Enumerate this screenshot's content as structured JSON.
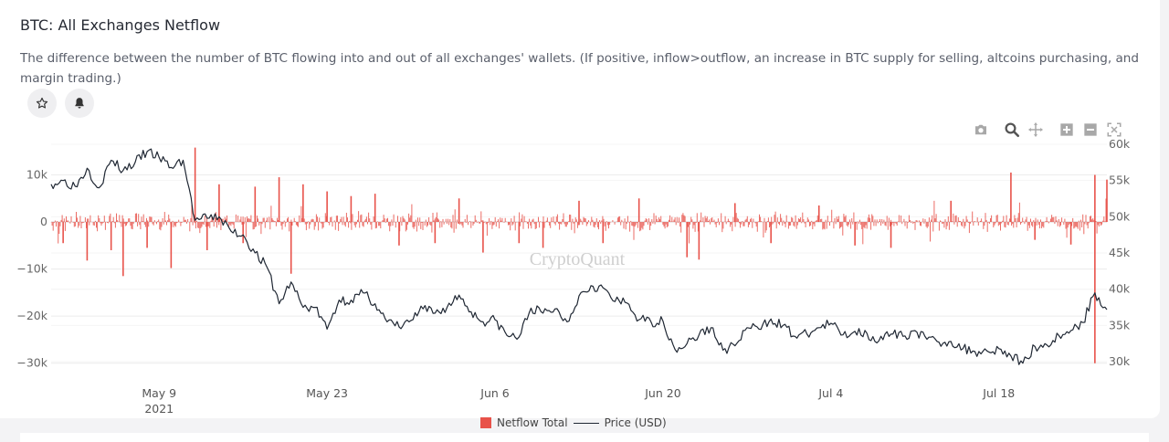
{
  "header": {
    "title": "BTC: All Exchanges Netflow",
    "description": "The difference between the number of BTC flowing into and out of all exchanges' wallets. (If positive, inflow>outflow, an increase in BTC supply for selling, altcoins purchasing, and margin trading.)"
  },
  "actions": {
    "star_icon": "star-icon",
    "bell_icon": "bell-icon"
  },
  "toolbar": {
    "icons": [
      "camera-icon",
      "zoom-icon",
      "pan-icon",
      "zoom-in-icon",
      "zoom-out-icon",
      "autoscale-icon"
    ]
  },
  "watermark": "CryptoQuant",
  "legend": {
    "netflow": "Netflow Total",
    "price": "Price (USD)"
  },
  "colors": {
    "netflow": "#e8524a",
    "price": "#1f2733",
    "grid": "#ececec"
  },
  "chart_data": {
    "type": "bar+line",
    "x_start": "2021-04-30",
    "x_end": "2021-07-27",
    "x_ticks": [
      {
        "date": "2021-05-09",
        "label": "May 9",
        "sublabel": "2021"
      },
      {
        "date": "2021-05-23",
        "label": "May 23"
      },
      {
        "date": "2021-06-06",
        "label": "Jun 6"
      },
      {
        "date": "2021-06-20",
        "label": "Jun 20"
      },
      {
        "date": "2021-07-04",
        "label": "Jul 4"
      },
      {
        "date": "2021-07-18",
        "label": "Jul 18"
      }
    ],
    "y_left": {
      "range": [
        -32000,
        16500
      ],
      "ticks": [
        10000,
        0,
        -10000,
        -20000,
        -30000
      ],
      "tick_labels": [
        "10k",
        "0",
        "−10k",
        "−20k",
        "−30k"
      ]
    },
    "y_right": {
      "range": [
        28500,
        60000
      ],
      "ticks": [
        60000,
        55000,
        50000,
        45000,
        40000,
        35000,
        30000
      ],
      "tick_labels": [
        "60k",
        "55k",
        "50k",
        "45k",
        "40k",
        "35k",
        "30k"
      ]
    },
    "series": [
      {
        "name": "Netflow Total",
        "axis": "left",
        "type": "bar",
        "spikes": [
          [
            "2021-05-01",
            -4500
          ],
          [
            "2021-05-03",
            -8200
          ],
          [
            "2021-05-05",
            -6000
          ],
          [
            "2021-05-06",
            -11500
          ],
          [
            "2021-05-08",
            -5500
          ],
          [
            "2021-05-10",
            -9800
          ],
          [
            "2021-05-12",
            15800
          ],
          [
            "2021-05-13",
            -6000
          ],
          [
            "2021-05-14",
            8000
          ],
          [
            "2021-05-16",
            -4500
          ],
          [
            "2021-05-17",
            7500
          ],
          [
            "2021-05-19",
            9500
          ],
          [
            "2021-05-20",
            -11000
          ],
          [
            "2021-05-21",
            8000
          ],
          [
            "2021-05-23",
            6500
          ],
          [
            "2021-05-25",
            5500
          ],
          [
            "2021-05-27",
            6000
          ],
          [
            "2021-05-29",
            -5000
          ],
          [
            "2021-06-01",
            -4500
          ],
          [
            "2021-06-03",
            5000
          ],
          [
            "2021-06-05",
            -6500
          ],
          [
            "2021-06-08",
            -4500
          ],
          [
            "2021-06-10",
            -5500
          ],
          [
            "2021-06-13",
            4500
          ],
          [
            "2021-06-15",
            -4500
          ],
          [
            "2021-06-18",
            5000
          ],
          [
            "2021-06-22",
            -7500
          ],
          [
            "2021-06-23",
            -8000
          ],
          [
            "2021-06-26",
            4000
          ],
          [
            "2021-06-29",
            -4500
          ],
          [
            "2021-07-03",
            3500
          ],
          [
            "2021-07-06",
            -5000
          ],
          [
            "2021-07-09",
            -5500
          ],
          [
            "2021-07-14",
            4500
          ],
          [
            "2021-07-19",
            10500
          ],
          [
            "2021-07-21",
            -3800
          ],
          [
            "2021-07-24",
            -4800
          ],
          [
            "2021-07-26",
            10000
          ],
          [
            "2021-07-26",
            -30000
          ],
          [
            "2021-07-27",
            9000
          ]
        ],
        "typical_amplitude": 2000
      },
      {
        "name": "Price (USD)",
        "axis": "right",
        "type": "line",
        "points": [
          [
            "2021-04-30",
            54500
          ],
          [
            "2021-05-01",
            55000
          ],
          [
            "2021-05-02",
            54200
          ],
          [
            "2021-05-03",
            56700
          ],
          [
            "2021-05-04",
            54000
          ],
          [
            "2021-05-05",
            57800
          ],
          [
            "2021-05-06",
            56400
          ],
          [
            "2021-05-07",
            57500
          ],
          [
            "2021-05-08",
            59000
          ],
          [
            "2021-05-09",
            58200
          ],
          [
            "2021-05-10",
            56800
          ],
          [
            "2021-05-11",
            57800
          ],
          [
            "2021-05-12",
            49500
          ],
          [
            "2021-05-13",
            49800
          ],
          [
            "2021-05-14",
            50000
          ],
          [
            "2021-05-15",
            48000
          ],
          [
            "2021-05-16",
            47500
          ],
          [
            "2021-05-17",
            45000
          ],
          [
            "2021-05-18",
            43000
          ],
          [
            "2021-05-19",
            38000
          ],
          [
            "2021-05-20",
            41000
          ],
          [
            "2021-05-21",
            37500
          ],
          [
            "2021-05-22",
            37500
          ],
          [
            "2021-05-23",
            34500
          ],
          [
            "2021-05-24",
            38500
          ],
          [
            "2021-05-25",
            38500
          ],
          [
            "2021-05-26",
            39500
          ],
          [
            "2021-05-27",
            38000
          ],
          [
            "2021-05-28",
            35500
          ],
          [
            "2021-05-29",
            34800
          ],
          [
            "2021-05-30",
            35700
          ],
          [
            "2021-05-31",
            37300
          ],
          [
            "2021-06-01",
            36700
          ],
          [
            "2021-06-02",
            37500
          ],
          [
            "2021-06-03",
            39200
          ],
          [
            "2021-06-04",
            36900
          ],
          [
            "2021-06-05",
            35500
          ],
          [
            "2021-06-06",
            35800
          ],
          [
            "2021-06-07",
            33600
          ],
          [
            "2021-06-08",
            33400
          ],
          [
            "2021-06-09",
            37400
          ],
          [
            "2021-06-10",
            36700
          ],
          [
            "2021-06-11",
            37300
          ],
          [
            "2021-06-12",
            35500
          ],
          [
            "2021-06-13",
            39100
          ],
          [
            "2021-06-14",
            40500
          ],
          [
            "2021-06-15",
            40200
          ],
          [
            "2021-06-16",
            38300
          ],
          [
            "2021-06-17",
            38100
          ],
          [
            "2021-06-18",
            35800
          ],
          [
            "2021-06-19",
            35500
          ],
          [
            "2021-06-20",
            35600
          ],
          [
            "2021-06-21",
            31700
          ],
          [
            "2021-06-22",
            32500
          ],
          [
            "2021-06-23",
            33700
          ],
          [
            "2021-06-24",
            34700
          ],
          [
            "2021-06-25",
            31600
          ],
          [
            "2021-06-26",
            32200
          ],
          [
            "2021-06-27",
            34700
          ],
          [
            "2021-06-28",
            34500
          ],
          [
            "2021-06-29",
            35900
          ],
          [
            "2021-06-30",
            35000
          ],
          [
            "2021-07-01",
            33500
          ],
          [
            "2021-07-02",
            33800
          ],
          [
            "2021-07-03",
            34700
          ],
          [
            "2021-07-04",
            35300
          ],
          [
            "2021-07-05",
            33700
          ],
          [
            "2021-07-06",
            34200
          ],
          [
            "2021-07-07",
            33900
          ],
          [
            "2021-07-08",
            32900
          ],
          [
            "2021-07-09",
            33800
          ],
          [
            "2021-07-10",
            33500
          ],
          [
            "2021-07-11",
            34300
          ],
          [
            "2021-07-12",
            33100
          ],
          [
            "2021-07-13",
            32700
          ],
          [
            "2021-07-14",
            32800
          ],
          [
            "2021-07-15",
            31800
          ],
          [
            "2021-07-16",
            31400
          ],
          [
            "2021-07-17",
            31500
          ],
          [
            "2021-07-18",
            31800
          ],
          [
            "2021-07-19",
            30800
          ],
          [
            "2021-07-20",
            29800
          ],
          [
            "2021-07-21",
            32100
          ],
          [
            "2021-07-22",
            32300
          ],
          [
            "2021-07-23",
            33600
          ],
          [
            "2021-07-24",
            34300
          ],
          [
            "2021-07-25",
            35400
          ],
          [
            "2021-07-26",
            39500
          ],
          [
            "2021-07-27",
            37200
          ]
        ]
      }
    ],
    "grid": true,
    "legend_position": "bottom-center"
  }
}
